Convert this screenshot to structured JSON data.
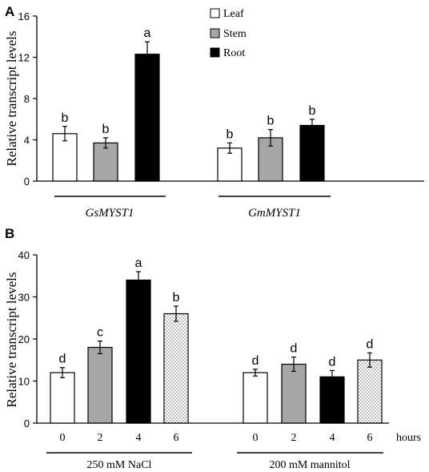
{
  "colors": {
    "leaf_fill": "#ffffff",
    "stem_fill": "#a6a6a6",
    "root_fill": "#000000",
    "dotted_fill": "#ffffff",
    "dots": "#666666",
    "stroke": "#000000"
  },
  "chart_data": [
    {
      "panel_label": "A",
      "type": "bar",
      "ylabel": "Relative transcript levels",
      "ylim": [
        0,
        16
      ],
      "yticks": [
        "0",
        "4",
        "8",
        "12",
        "16"
      ],
      "groups": [
        "GsMYST1",
        "GmMYST1"
      ],
      "legend": {
        "placement": "top-center",
        "entries": [
          "Leaf",
          "Stem",
          "Root"
        ]
      },
      "series": [
        {
          "name": "Leaf",
          "values": [
            4.6,
            3.2
          ],
          "errors": [
            0.7,
            0.5
          ],
          "labels": [
            "b",
            "b"
          ]
        },
        {
          "name": "Stem",
          "values": [
            3.7,
            4.2
          ],
          "errors": [
            0.5,
            0.8
          ],
          "labels": [
            "b",
            "b"
          ]
        },
        {
          "name": "Root",
          "values": [
            12.3,
            5.4
          ],
          "errors": [
            1.2,
            0.6
          ],
          "labels": [
            "a",
            "b"
          ]
        }
      ]
    },
    {
      "panel_label": "B",
      "type": "bar",
      "ylabel": "Relative transcript levels",
      "ylim": [
        0,
        40
      ],
      "yticks": [
        "0",
        "10",
        "20",
        "30",
        "40"
      ],
      "x_unit": "hours",
      "groups": [
        "250 mM NaCl",
        "200 mM mannitol"
      ],
      "categories": [
        "0",
        "2",
        "4",
        "6"
      ],
      "series": [
        {
          "group": "250 mM NaCl",
          "values": [
            12,
            18,
            34,
            26
          ],
          "errors": [
            1.2,
            1.5,
            2.0,
            1.8
          ],
          "labels": [
            "d",
            "c",
            "a",
            "b"
          ]
        },
        {
          "group": "200 mM mannitol",
          "values": [
            12,
            14,
            11,
            15
          ],
          "errors": [
            0.8,
            1.7,
            1.5,
            1.7
          ],
          "labels": [
            "d",
            "d",
            "d",
            "d"
          ]
        }
      ]
    }
  ]
}
